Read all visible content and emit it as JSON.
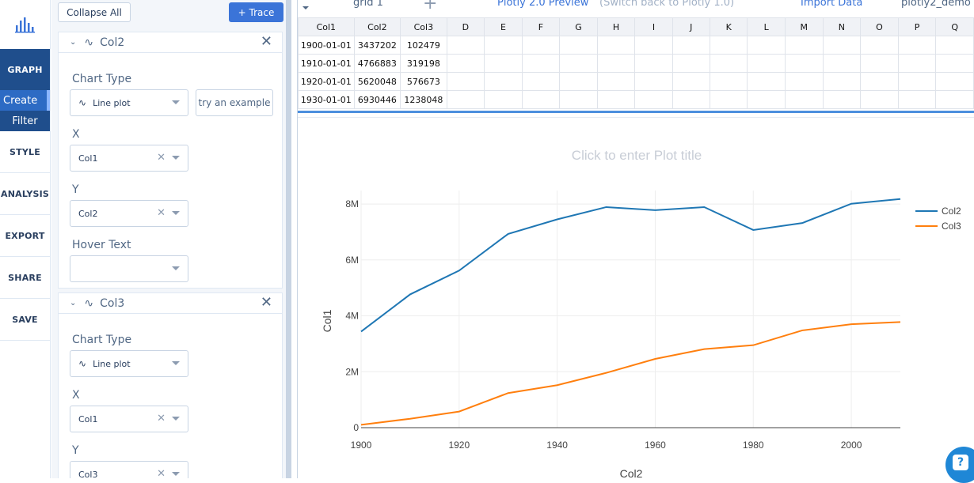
{
  "nav": {
    "items": [
      "GRAPH",
      "STYLE",
      "ANALYSIS",
      "EXPORT",
      "SHARE",
      "SAVE"
    ],
    "graph_sub": [
      "Create",
      "Filter"
    ]
  },
  "panel": {
    "collapse_label": "Collapse All",
    "add_trace_label": "+ Trace",
    "traces": [
      {
        "name": "Col2",
        "chart_type_label": "Chart Type",
        "chart_type_value": "Line plot",
        "try_example": "try an example",
        "x_label": "X",
        "x_value": "Col1",
        "y_label": "Y",
        "y_value": "Col2",
        "hover_label": "Hover Text",
        "hover_value": ""
      },
      {
        "name": "Col3",
        "chart_type_label": "Chart Type",
        "chart_type_value": "Line plot",
        "x_label": "X",
        "x_value": "Col1",
        "y_label": "Y",
        "y_value": "Col3"
      }
    ]
  },
  "toolbar": {
    "grid_name": "grid 1",
    "add_grid": "+",
    "preview": "Plotly 2.0 Preview",
    "switch_back": "(Switch back to Plotly 1.0)",
    "import": "Import Data",
    "user": "plotly2_demo"
  },
  "grid": {
    "headers": [
      "Col1",
      "Col2",
      "Col3",
      "D",
      "E",
      "F",
      "G",
      "H",
      "I",
      "J",
      "K",
      "L",
      "M",
      "N",
      "O",
      "P",
      "Q"
    ],
    "rows": [
      [
        "1900-01-01",
        "3437202",
        "102479"
      ],
      [
        "1910-01-01",
        "4766883",
        "319198"
      ],
      [
        "1920-01-01",
        "5620048",
        "576673"
      ],
      [
        "1930-01-01",
        "6930446",
        "1238048"
      ]
    ]
  },
  "chart_data": {
    "type": "line",
    "title": "Click to enter Plot title",
    "xlabel": "Col2",
    "ylabel": "Col1",
    "xlim": [
      1900,
      2010
    ],
    "ylim": [
      0,
      8200000
    ],
    "x_ticks": [
      1900,
      1920,
      1940,
      1960,
      1980,
      2000
    ],
    "y_ticks": [
      0,
      2000000,
      4000000,
      6000000,
      8000000
    ],
    "y_tick_labels": [
      "0",
      "2M",
      "4M",
      "6M",
      "8M"
    ],
    "x": [
      1900,
      1910,
      1920,
      1930,
      1940,
      1950,
      1960,
      1970,
      1980,
      1990,
      2000,
      2010
    ],
    "series": [
      {
        "name": "Col2",
        "color": "#1f77b4",
        "values": [
          3437202,
          4766883,
          5620048,
          6930446,
          7450000,
          7890000,
          7780000,
          7890000,
          7070000,
          7320000,
          8010000,
          8180000
        ]
      },
      {
        "name": "Col3",
        "color": "#ff7f0e",
        "values": [
          102479,
          319198,
          576673,
          1238048,
          1520000,
          1960000,
          2460000,
          2810000,
          2950000,
          3480000,
          3700000,
          3780000
        ]
      }
    ],
    "legend": "top-right",
    "grid": true
  }
}
